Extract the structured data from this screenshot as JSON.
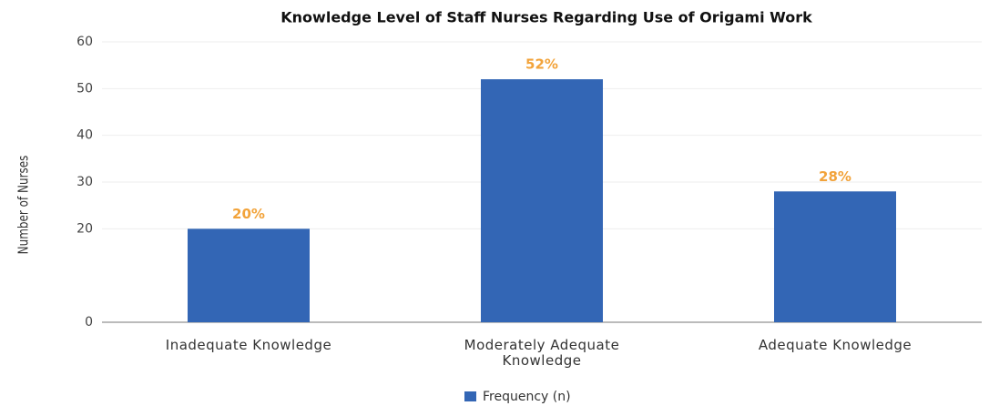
{
  "chart_data": {
    "type": "bar",
    "title": "Knowledge Level of Staff Nurses Regarding Use of Origami Work",
    "y_label": "Number of Nurses",
    "categories": [
      "Inadequate Knowledge",
      "Moderately Adequate Knowledge",
      "Adequate Knowledge"
    ],
    "series": [
      {
        "name": "Frequency (n)",
        "color": "#3366b5",
        "values": [
          20,
          52,
          28
        ],
        "value_labels": [
          "20%",
          "52%",
          "28%"
        ]
      }
    ],
    "value_label_color": "#f2a33a",
    "ylim": [
      0,
      60
    ],
    "yticks": [
      0,
      20,
      30,
      40,
      50,
      60
    ],
    "grid": true,
    "legend": "bottom"
  }
}
